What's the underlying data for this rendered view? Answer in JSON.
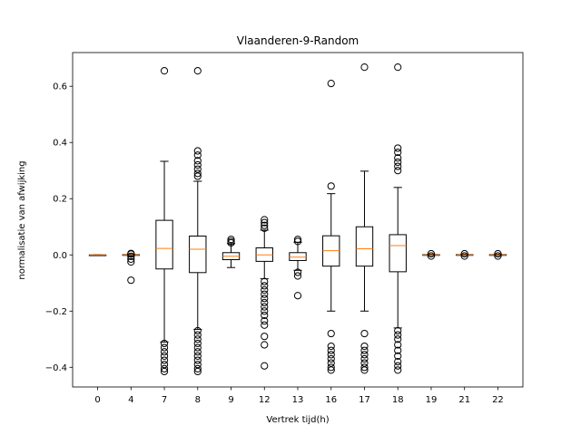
{
  "chart_data": {
    "type": "boxplot",
    "title": "Vlaanderen-9-Random",
    "xlabel": "Vertrek tijd(h)",
    "ylabel": "normalisatie van afwijking",
    "ylim": [
      -0.47,
      0.72
    ],
    "yticks": [
      -0.4,
      -0.2,
      0.0,
      0.2,
      0.4,
      0.6
    ],
    "ytick_labels": [
      "−0.4",
      "−0.2",
      "0.0",
      "0.2",
      "0.4",
      "0.6"
    ],
    "grid": false,
    "categories": [
      "0",
      "4",
      "7",
      "8",
      "9",
      "12",
      "13",
      "16",
      "17",
      "18",
      "19",
      "21",
      "22"
    ],
    "boxes": [
      {
        "label": "0",
        "whislo": 0.0,
        "q1": 0.0,
        "med": 0.0,
        "q3": 0.0,
        "whishi": 0.0,
        "fliers": []
      },
      {
        "label": "4",
        "whislo": -0.002,
        "q1": -0.001,
        "med": 0.0,
        "q3": 0.001,
        "whishi": 0.002,
        "fliers": [
          0.005,
          0.003,
          -0.005,
          -0.015,
          -0.025,
          -0.09
        ]
      },
      {
        "label": "7",
        "whislo": -0.31,
        "q1": -0.05,
        "med": 0.023,
        "q3": 0.123,
        "whishi": 0.333,
        "fliers": [
          0.655,
          -0.315,
          -0.33,
          -0.345,
          -0.36,
          -0.375,
          -0.39,
          -0.405,
          -0.415
        ]
      },
      {
        "label": "8",
        "whislo": -0.265,
        "q1": -0.063,
        "med": 0.02,
        "q3": 0.067,
        "whishi": 0.262,
        "fliers": [
          0.655,
          0.37,
          0.355,
          0.335,
          0.32,
          0.305,
          0.29,
          0.28,
          -0.27,
          -0.285,
          -0.3,
          -0.315,
          -0.33,
          -0.345,
          -0.36,
          -0.375,
          -0.39,
          -0.405,
          -0.415
        ]
      },
      {
        "label": "9",
        "whislo": -0.045,
        "q1": -0.017,
        "med": -0.005,
        "q3": 0.008,
        "whishi": 0.04,
        "fliers": [
          0.055,
          0.048,
          0.043
        ]
      },
      {
        "label": "12",
        "whislo": -0.085,
        "q1": -0.023,
        "med": 0.0,
        "q3": 0.025,
        "whishi": 0.088,
        "fliers": [
          0.125,
          0.115,
          0.105,
          0.095,
          -0.095,
          -0.11,
          -0.125,
          -0.14,
          -0.155,
          -0.17,
          -0.185,
          -0.2,
          -0.215,
          -0.235,
          -0.25,
          -0.29,
          -0.32,
          -0.395
        ]
      },
      {
        "label": "13",
        "whislo": -0.055,
        "q1": -0.02,
        "med": -0.008,
        "q3": 0.008,
        "whishi": 0.045,
        "fliers": [
          0.055,
          0.048,
          -0.062,
          -0.075,
          -0.145
        ]
      },
      {
        "label": "16",
        "whislo": -0.2,
        "q1": -0.04,
        "med": 0.015,
        "q3": 0.068,
        "whishi": 0.218,
        "fliers": [
          0.61,
          0.245,
          -0.28,
          -0.325,
          -0.34,
          -0.355,
          -0.37,
          -0.385,
          -0.4,
          -0.41
        ]
      },
      {
        "label": "17",
        "whislo": -0.2,
        "q1": -0.04,
        "med": 0.022,
        "q3": 0.1,
        "whishi": 0.298,
        "fliers": [
          0.668,
          -0.28,
          -0.325,
          -0.34,
          -0.355,
          -0.37,
          -0.385,
          -0.4,
          -0.41
        ]
      },
      {
        "label": "18",
        "whislo": -0.26,
        "q1": -0.06,
        "med": 0.033,
        "q3": 0.072,
        "whishi": 0.24,
        "fliers": [
          0.668,
          0.38,
          0.365,
          0.345,
          0.33,
          0.315,
          0.3,
          -0.27,
          -0.285,
          -0.3,
          -0.32,
          -0.34,
          -0.36,
          -0.38,
          -0.395,
          -0.41
        ]
      },
      {
        "label": "19",
        "whislo": -0.002,
        "q1": -0.001,
        "med": 0.0,
        "q3": 0.001,
        "whishi": 0.002,
        "fliers": [
          0.004,
          -0.004
        ]
      },
      {
        "label": "21",
        "whislo": -0.002,
        "q1": -0.001,
        "med": 0.0,
        "q3": 0.001,
        "whishi": 0.002,
        "fliers": [
          0.004,
          -0.004
        ]
      },
      {
        "label": "22",
        "whislo": -0.002,
        "q1": -0.001,
        "med": 0.0,
        "q3": 0.001,
        "whishi": 0.002,
        "fliers": [
          0.004,
          -0.004
        ]
      }
    ],
    "colors": {
      "median": "#ff7f0e",
      "box": "#000000",
      "flier": "#000000",
      "background": "#ffffff"
    }
  }
}
